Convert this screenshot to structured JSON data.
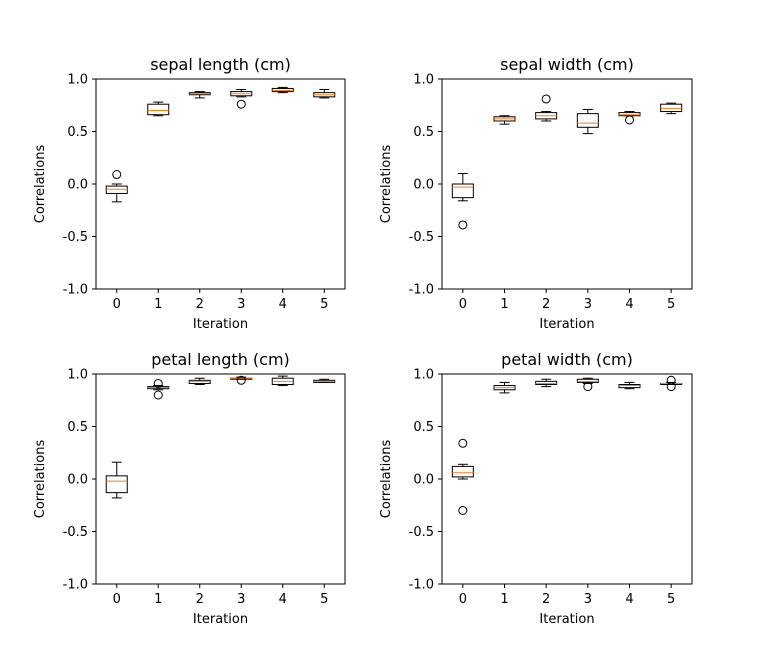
{
  "chart_data": [
    {
      "type": "boxplot",
      "title": "sepal length (cm)",
      "xlabel": "Iteration",
      "ylabel": "Correlations",
      "ylim": [
        -1.0,
        1.0
      ],
      "yticks": [
        "-1.0",
        "-0.5",
        "0.0",
        "0.5",
        "1.0"
      ],
      "categories": [
        "0",
        "1",
        "2",
        "3",
        "4",
        "5"
      ],
      "boxes": [
        {
          "whislo": -0.17,
          "q1": -0.09,
          "med": -0.05,
          "q3": -0.02,
          "whishi": 0.0,
          "fliers": [
            0.09
          ]
        },
        {
          "whislo": 0.65,
          "q1": 0.66,
          "med": 0.7,
          "q3": 0.76,
          "whishi": 0.78,
          "fliers": []
        },
        {
          "whislo": 0.82,
          "q1": 0.85,
          "med": 0.86,
          "q3": 0.87,
          "whishi": 0.88,
          "fliers": []
        },
        {
          "whislo": 0.83,
          "q1": 0.84,
          "med": 0.86,
          "q3": 0.88,
          "whishi": 0.9,
          "fliers": [
            0.76
          ]
        },
        {
          "whislo": 0.87,
          "q1": 0.88,
          "med": 0.89,
          "q3": 0.91,
          "whishi": 0.92,
          "fliers": []
        },
        {
          "whislo": 0.82,
          "q1": 0.83,
          "med": 0.85,
          "q3": 0.87,
          "whishi": 0.9,
          "fliers": []
        }
      ]
    },
    {
      "type": "boxplot",
      "title": "sepal width (cm)",
      "xlabel": "Iteration",
      "ylabel": "Correlations",
      "ylim": [
        -1.0,
        1.0
      ],
      "yticks": [
        "-1.0",
        "-0.5",
        "0.0",
        "0.5",
        "1.0"
      ],
      "categories": [
        "0",
        "1",
        "2",
        "3",
        "4",
        "5"
      ],
      "boxes": [
        {
          "whislo": -0.16,
          "q1": -0.13,
          "med": -0.03,
          "q3": 0.0,
          "whishi": 0.1,
          "fliers": [
            -0.39
          ]
        },
        {
          "whislo": 0.57,
          "q1": 0.6,
          "med": 0.62,
          "q3": 0.64,
          "whishi": 0.65,
          "fliers": []
        },
        {
          "whislo": 0.6,
          "q1": 0.62,
          "med": 0.65,
          "q3": 0.68,
          "whishi": 0.69,
          "fliers": [
            0.81
          ]
        },
        {
          "whislo": 0.48,
          "q1": 0.54,
          "med": 0.58,
          "q3": 0.67,
          "whishi": 0.71,
          "fliers": []
        },
        {
          "whislo": 0.65,
          "q1": 0.65,
          "med": 0.66,
          "q3": 0.68,
          "whishi": 0.69,
          "fliers": [
            0.61
          ]
        },
        {
          "whislo": 0.67,
          "q1": 0.69,
          "med": 0.72,
          "q3": 0.76,
          "whishi": 0.77,
          "fliers": []
        }
      ]
    },
    {
      "type": "boxplot",
      "title": "petal length (cm)",
      "xlabel": "Iteration",
      "ylabel": "Correlations",
      "ylim": [
        -1.0,
        1.0
      ],
      "yticks": [
        "-1.0",
        "-0.5",
        "0.0",
        "0.5",
        "1.0"
      ],
      "categories": [
        "0",
        "1",
        "2",
        "3",
        "4",
        "5"
      ],
      "boxes": [
        {
          "whislo": -0.18,
          "q1": -0.13,
          "med": -0.02,
          "q3": 0.03,
          "whishi": 0.16,
          "fliers": []
        },
        {
          "whislo": 0.85,
          "q1": 0.86,
          "med": 0.87,
          "q3": 0.88,
          "whishi": 0.89,
          "fliers": [
            0.8,
            0.91
          ]
        },
        {
          "whislo": 0.9,
          "q1": 0.91,
          "med": 0.93,
          "q3": 0.94,
          "whishi": 0.96,
          "fliers": []
        },
        {
          "whislo": 0.95,
          "q1": 0.95,
          "med": 0.96,
          "q3": 0.96,
          "whishi": 0.97,
          "fliers": [
            0.94
          ]
        },
        {
          "whislo": 0.89,
          "q1": 0.9,
          "med": 0.93,
          "q3": 0.96,
          "whishi": 0.98,
          "fliers": []
        },
        {
          "whislo": 0.92,
          "q1": 0.92,
          "med": 0.93,
          "q3": 0.94,
          "whishi": 0.95,
          "fliers": []
        }
      ]
    },
    {
      "type": "boxplot",
      "title": "petal width (cm)",
      "xlabel": "Iteration",
      "ylabel": "Correlations",
      "ylim": [
        -1.0,
        1.0
      ],
      "yticks": [
        "-1.0",
        "-0.5",
        "0.0",
        "0.5",
        "1.0"
      ],
      "categories": [
        "0",
        "1",
        "2",
        "3",
        "4",
        "5"
      ],
      "boxes": [
        {
          "whislo": -0.0,
          "q1": 0.02,
          "med": 0.06,
          "q3": 0.12,
          "whishi": 0.14,
          "fliers": [
            0.34,
            -0.3
          ]
        },
        {
          "whislo": 0.82,
          "q1": 0.85,
          "med": 0.87,
          "q3": 0.89,
          "whishi": 0.92,
          "fliers": []
        },
        {
          "whislo": 0.88,
          "q1": 0.9,
          "med": 0.91,
          "q3": 0.93,
          "whishi": 0.95,
          "fliers": []
        },
        {
          "whislo": 0.91,
          "q1": 0.92,
          "med": 0.93,
          "q3": 0.95,
          "whishi": 0.96,
          "fliers": [
            0.88
          ]
        },
        {
          "whislo": 0.86,
          "q1": 0.87,
          "med": 0.89,
          "q3": 0.9,
          "whishi": 0.92,
          "fliers": []
        },
        {
          "whislo": 0.9,
          "q1": 0.9,
          "med": 0.91,
          "q3": 0.91,
          "whishi": 0.92,
          "fliers": [
            0.88,
            0.94
          ]
        }
      ]
    }
  ],
  "colors": {
    "box": "#000000",
    "median": "#ff7f0e",
    "background": "#ffffff"
  }
}
